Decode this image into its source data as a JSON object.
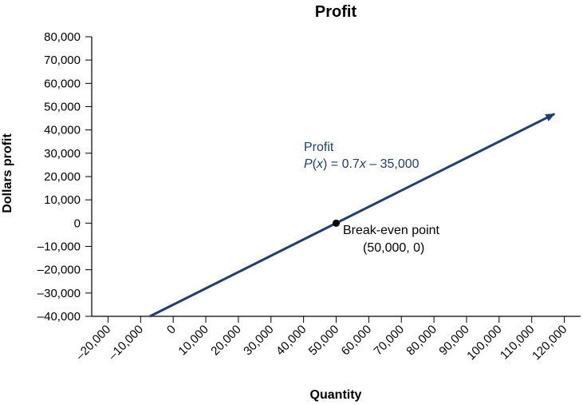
{
  "chart_data": {
    "type": "line",
    "title": "Profit",
    "xlabel": "Quantity",
    "ylabel": "Dollars profit",
    "xlim": [
      -25000,
      125000
    ],
    "ylim": [
      -40000,
      80000
    ],
    "x_ticks": [
      -20000,
      -10000,
      0,
      10000,
      20000,
      30000,
      40000,
      50000,
      60000,
      70000,
      80000,
      90000,
      100000,
      110000,
      120000
    ],
    "x_tick_labels": [
      "–20,000",
      "–10,000",
      "0",
      "10,000",
      "20,000",
      "30,000",
      "40,000",
      "50,000",
      "60,000",
      "70,000",
      "80,000",
      "90,000",
      "100,000",
      "110,000",
      "120,000"
    ],
    "y_ticks": [
      -40000,
      -30000,
      -20000,
      -10000,
      0,
      10000,
      20000,
      30000,
      40000,
      50000,
      60000,
      70000,
      80000
    ],
    "y_tick_labels": [
      "–40,000",
      "–30,000",
      "–20,000",
      "–10,000",
      "0",
      "10,000",
      "20,000",
      "30,000",
      "40,000",
      "50,000",
      "60,000",
      "70,000",
      "80,000"
    ],
    "grid": false,
    "series": [
      {
        "label_line1": "Profit",
        "label_P": "P",
        "label_open": "(",
        "label_x1": "x",
        "label_mid": ") = 0.7",
        "label_x2": "x",
        "label_end": " – 35,000",
        "color": "#1f3f6e",
        "x": [
          -7143,
          117000
        ],
        "y": [
          -40000,
          46900
        ],
        "arrow_end": true
      }
    ],
    "points": [
      {
        "x": 50000,
        "y": 0,
        "label_line1": "Break-even point",
        "label_line2": "(50,000, 0)",
        "color": "#000000"
      }
    ]
  }
}
